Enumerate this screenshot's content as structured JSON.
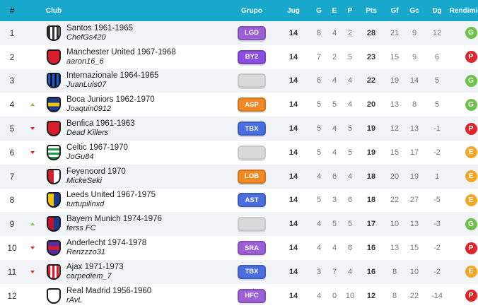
{
  "headers": {
    "pos": "#",
    "club": "Club",
    "grupo": "Grupo",
    "jug": "Jug",
    "g": "G",
    "e": "E",
    "p": "P",
    "pts": "Pts",
    "gf": "Gf",
    "gc": "Gc",
    "dg": "Dg",
    "rendimiento": "Rendimiento"
  },
  "colors": {
    "header_bg": "#17a8cc",
    "badge_G": "#6cc24a",
    "badge_P": "#e1232a",
    "badge_E": "#f5a623",
    "trend_up": "#7dc241",
    "trend_down": "#e1232a"
  },
  "rows": [
    {
      "pos": "1",
      "trend": "none",
      "shield": {
        "primary": "#333333",
        "secondary": "#ffffff",
        "icon": "stripes-shield-icon"
      },
      "club": "Santos 1961-1965",
      "user": "ChefGs420",
      "group": "LGD",
      "group_color": "#9b5fd6",
      "jug": "14",
      "g": "8",
      "e": "4",
      "p": "2",
      "pts": "28",
      "gf": "21",
      "gc": "9",
      "dg": "12",
      "rend": "G"
    },
    {
      "pos": "2",
      "trend": "none",
      "shield": {
        "primary": "#d81e2b",
        "secondary": "#d81e2b",
        "icon": "solid-shield-icon"
      },
      "club": "Manchester United 1967-1968",
      "user": "aaron16_6",
      "group": "BY2",
      "group_color": "#8a4fe0",
      "jug": "14",
      "g": "7",
      "e": "2",
      "p": "5",
      "pts": "23",
      "gf": "15",
      "gc": "9",
      "dg": "6",
      "rend": "P"
    },
    {
      "pos": "3",
      "trend": "none",
      "shield": {
        "primary": "#1f5fbf",
        "secondary": "#111111",
        "icon": "stripes-shield-icon"
      },
      "club": "Internazionale 1964-1965",
      "user": "JuanLuis07",
      "group": "",
      "group_color": "",
      "jug": "14",
      "g": "6",
      "e": "4",
      "p": "4",
      "pts": "22",
      "gf": "19",
      "gc": "14",
      "dg": "5",
      "rend": "G"
    },
    {
      "pos": "4",
      "trend": "up",
      "shield": {
        "primary": "#1a3a8c",
        "secondary": "#f5c400",
        "icon": "band-shield-icon"
      },
      "club": "Boca Juniors 1962-1970",
      "user": "Joaquin0912",
      "group": "ASP",
      "group_color": "#f08a24",
      "jug": "14",
      "g": "5",
      "e": "5",
      "p": "4",
      "pts": "20",
      "gf": "13",
      "gc": "8",
      "dg": "5",
      "rend": "G"
    },
    {
      "pos": "5",
      "trend": "down",
      "shield": {
        "primary": "#d81e2b",
        "secondary": "#d81e2b",
        "icon": "solid-shield-icon"
      },
      "club": "Benfica 1961-1963",
      "user": "Dead Killers",
      "group": "TBX",
      "group_color": "#4a6ee0",
      "jug": "14",
      "g": "5",
      "e": "4",
      "p": "5",
      "pts": "19",
      "gf": "12",
      "gc": "13",
      "dg": "-1",
      "rend": "P"
    },
    {
      "pos": "6",
      "trend": "down",
      "shield": {
        "primary": "#1e9a4a",
        "secondary": "#ffffff",
        "icon": "hoops-shield-icon"
      },
      "club": "Celtic 1967-1970",
      "user": "JoGu84",
      "group": "",
      "group_color": "",
      "jug": "14",
      "g": "5",
      "e": "4",
      "p": "5",
      "pts": "19",
      "gf": "15",
      "gc": "17",
      "dg": "-2",
      "rend": "E"
    },
    {
      "pos": "7",
      "trend": "none",
      "shield": {
        "primary": "#d81e2b",
        "secondary": "#ffffff",
        "icon": "halves-shield-icon"
      },
      "club": "Feyenoord 1970",
      "user": "MickeSeki",
      "group": "LOB",
      "group_color": "#f08a24",
      "jug": "14",
      "g": "4",
      "e": "6",
      "p": "4",
      "pts": "18",
      "gf": "20",
      "gc": "19",
      "dg": "1",
      "rend": "E"
    },
    {
      "pos": "8",
      "trend": "none",
      "shield": {
        "primary": "#f5c400",
        "secondary": "#1a3a8c",
        "icon": "halves-shield-icon"
      },
      "club": "Leeds United 1967-1975",
      "user": "turtupilinxd",
      "group": "AST",
      "group_color": "#4a6ee0",
      "jug": "14",
      "g": "5",
      "e": "3",
      "p": "6",
      "pts": "18",
      "gf": "22",
      "gc": "27",
      "dg": "-5",
      "rend": "E"
    },
    {
      "pos": "9",
      "trend": "up",
      "shield": {
        "primary": "#c8102e",
        "secondary": "#1a3a8c",
        "icon": "halves-shield-icon"
      },
      "club": "Bayern Munich 1974-1976",
      "user": "ferss FC",
      "group": "",
      "group_color": "",
      "jug": "14",
      "g": "4",
      "e": "5",
      "p": "5",
      "pts": "17",
      "gf": "10",
      "gc": "13",
      "dg": "-3",
      "rend": "G"
    },
    {
      "pos": "10",
      "trend": "down",
      "shield": {
        "primary": "#5a2ca0",
        "secondary": "#d81e2b",
        "icon": "band-shield-icon"
      },
      "club": "Anderlecht 1974-1978",
      "user": "Renzzzo31",
      "group": "SRA",
      "group_color": "#9b5fd6",
      "jug": "14",
      "g": "4",
      "e": "4",
      "p": "6",
      "pts": "16",
      "gf": "13",
      "gc": "15",
      "dg": "-2",
      "rend": "P"
    },
    {
      "pos": "11",
      "trend": "down",
      "shield": {
        "primary": "#d81e2b",
        "secondary": "#ffffff",
        "icon": "stripes-shield-icon"
      },
      "club": "Ajax 1971-1973",
      "user": "carpediem_7",
      "group": "TBX",
      "group_color": "#4a6ee0",
      "jug": "14",
      "g": "3",
      "e": "7",
      "p": "4",
      "pts": "16",
      "gf": "8",
      "gc": "10",
      "dg": "-2",
      "rend": "E"
    },
    {
      "pos": "12",
      "trend": "none",
      "shield": {
        "primary": "#ffffff",
        "secondary": "#cccccc",
        "icon": "solid-shield-icon"
      },
      "club": "Real Madrid 1956-1960",
      "user": "rAvL",
      "group": "HFC",
      "group_color": "#9b5fd6",
      "jug": "14",
      "g": "4",
      "e": "0",
      "p": "10",
      "pts": "12",
      "gf": "8",
      "gc": "22",
      "dg": "-14",
      "rend": "P"
    }
  ]
}
